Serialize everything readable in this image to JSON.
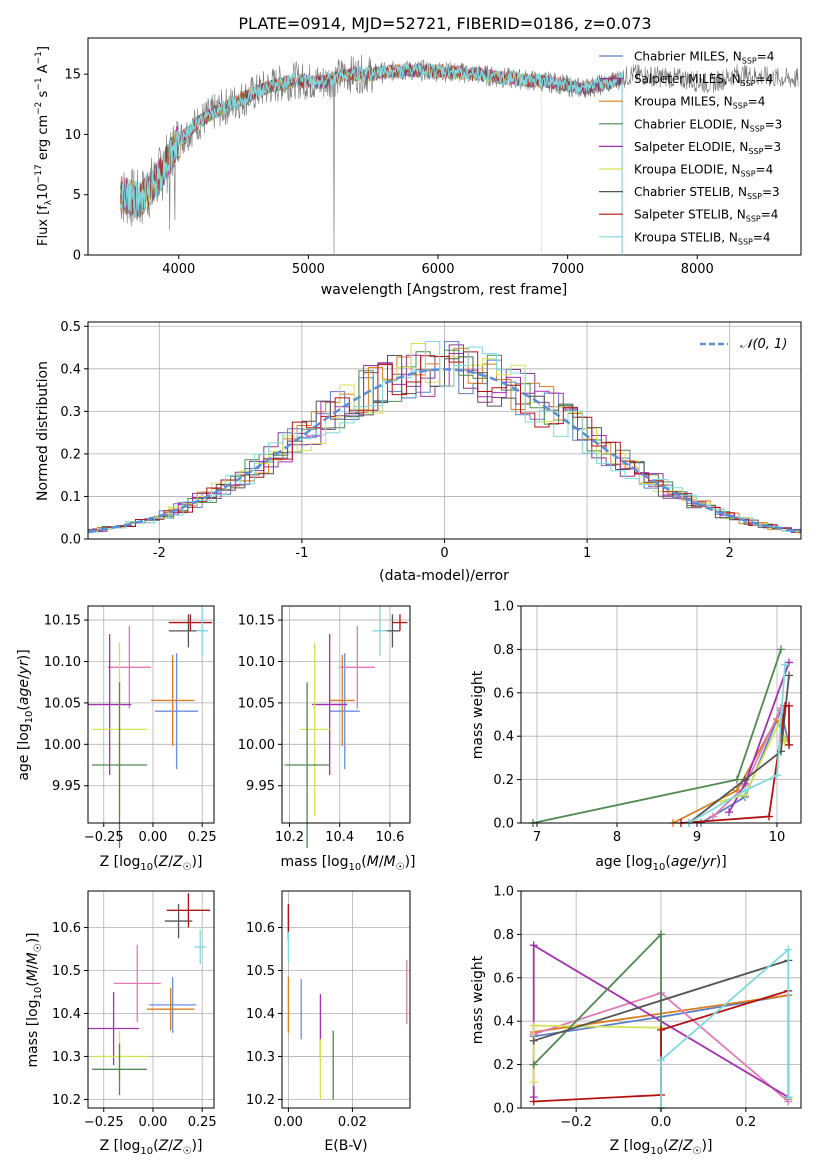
{
  "figure_title": "PLATE=0914, MJD=52721, FIBERID=0186, z=0.073",
  "colors": {
    "Chabrier MILES": "#5b7fc7",
    "Salpeter MILES": "#8b3b8f",
    "Kroupa MILES": "#d97d1f",
    "Chabrier ELODIE": "#4f8a4f",
    "Salpeter ELODIE": "#a531b0",
    "Kroupa ELODIE": "#d2e356",
    "Chabrier STELIB": "#555555",
    "Salpeter STELIB": "#b31212",
    "Kroupa STELIB": "#7fd9de",
    "Chabrier MILES alt": "#6a8fe0",
    "Salpeter MILES alt": "#e07ab8"
  },
  "chart_data": [
    {
      "id": "spectrum",
      "type": "line",
      "title": "PLATE=0914, MJD=52721, FIBERID=0186, z=0.073",
      "xlabel": "wavelength [Angstrom, rest frame]",
      "ylabel": "Flux [f_λ 10^-17 erg cm^-2 s^-1 A^-1]",
      "xlim": [
        3300,
        8800
      ],
      "ylim": [
        0,
        18
      ],
      "xticks": [
        4000,
        5000,
        6000,
        7000,
        8000
      ],
      "yticks": [
        0,
        5,
        10,
        15
      ],
      "grid": false,
      "legend_position": "upper-right",
      "legend": [
        {
          "label": "Chabrier MILES, N",
          "sub": "SSP",
          "suffix": "=4",
          "color": "#5b7fc7"
        },
        {
          "label": "Salpeter MILES, N",
          "sub": "SSP",
          "suffix": "=4",
          "color": "#8b3b8f"
        },
        {
          "label": "Kroupa MILES, N",
          "sub": "SSP",
          "suffix": "=4",
          "color": "#d97d1f"
        },
        {
          "label": "Chabrier ELODIE, N",
          "sub": "SSP",
          "suffix": "=3",
          "color": "#4f8a4f"
        },
        {
          "label": "Salpeter ELODIE, N",
          "sub": "SSP",
          "suffix": "=3",
          "color": "#a531b0"
        },
        {
          "label": "Kroupa ELODIE, N",
          "sub": "SSP",
          "suffix": "=4",
          "color": "#d2e356"
        },
        {
          "label": "Chabrier STELIB, N",
          "sub": "SSP",
          "suffix": "=3",
          "color": "#555555"
        },
        {
          "label": "Salpeter STELIB, N",
          "sub": "SSP",
          "suffix": "=4",
          "color": "#b31212"
        },
        {
          "label": "Kroupa STELIB, N",
          "sub": "SSP",
          "suffix": "=4",
          "color": "#7fd9de"
        }
      ],
      "data_envelope": {
        "x": [
          3550,
          3700,
          3850,
          4000,
          4150,
          4300,
          4500,
          4700,
          4900,
          5100,
          5300,
          5500,
          5700,
          5900,
          6100,
          6300,
          6500,
          6700,
          6900,
          7100,
          7300,
          7500,
          7700,
          7900,
          8100,
          8300,
          8500,
          8700
        ],
        "y": [
          5.0,
          4.5,
          6.5,
          9.5,
          11.0,
          12.0,
          13.0,
          14.0,
          14.5,
          14.3,
          15.0,
          15.0,
          15.3,
          15.3,
          15.2,
          15.0,
          14.7,
          14.5,
          14.3,
          13.8,
          14.2,
          15.0,
          14.8,
          14.6,
          14.2,
          15.0,
          14.8,
          14.6
        ]
      },
      "model_range": [
        3550,
        7420
      ]
    },
    {
      "id": "residuals",
      "type": "line",
      "xlabel": "(data-model)/error",
      "ylabel": "Normed distribution",
      "xlim": [
        -2.5,
        2.5
      ],
      "ylim": [
        0,
        0.51
      ],
      "xticks": [
        -2,
        -1,
        0,
        1,
        2
      ],
      "yticks": [
        0.0,
        0.1,
        0.2,
        0.3,
        0.4,
        0.5
      ],
      "grid": true,
      "legend_position": "upper-right",
      "legend": [
        {
          "label": "𝒩(0, 1)",
          "color": "#5b8fd6",
          "style": "dashed"
        }
      ],
      "bin_width": 0.1,
      "series": [
        {
          "color": "#5b7fc7",
          "offset": 0
        },
        {
          "color": "#8b3b8f",
          "offset": 1
        },
        {
          "color": "#d97d1f",
          "offset": 2
        },
        {
          "color": "#4f8a4f",
          "offset": 3
        },
        {
          "color": "#a531b0",
          "offset": 4
        },
        {
          "color": "#d2e356",
          "offset": 5
        },
        {
          "color": "#555555",
          "offset": 6
        },
        {
          "color": "#b31212",
          "offset": 7
        },
        {
          "color": "#7fd9de",
          "offset": 8
        }
      ]
    },
    {
      "id": "age-vs-Z",
      "type": "scatter",
      "xlabel": "Z [log₁₀(Z/Z☉)]",
      "ylabel": "age [log₁₀(age/yr)]",
      "xlim": [
        -0.33,
        0.31
      ],
      "ylim": [
        9.905,
        10.167
      ],
      "xticks": [
        -0.25,
        0.0,
        0.25
      ],
      "xticklabels": [
        "−0.25",
        "0.00",
        "0.25"
      ],
      "yticks": [
        9.95,
        10.0,
        10.05,
        10.1,
        10.15
      ],
      "yticklabels": [
        "9.95",
        "10.00",
        "10.05",
        "10.10",
        "10.15"
      ],
      "grid": true,
      "points": [
        {
          "x": 0.12,
          "y": 10.04,
          "xerr": 0.11,
          "yerr": 0.07,
          "color": "#6a8fe0"
        },
        {
          "x": 0.1,
          "y": 10.053,
          "xerr": 0.11,
          "yerr": 0.055,
          "color": "#d97d1f"
        },
        {
          "x": -0.12,
          "y": 10.093,
          "xerr": 0.11,
          "yerr": 0.05,
          "color": "#e07ab8"
        },
        {
          "x": -0.22,
          "y": 10.048,
          "xerr": 0.11,
          "yerr": 0.085,
          "color": "#a531b0"
        },
        {
          "x": -0.17,
          "y": 10.018,
          "xerr": 0.14,
          "yerr": 0.105,
          "color": "#d2e356"
        },
        {
          "x": -0.17,
          "y": 9.975,
          "xerr": 0.14,
          "yerr": 0.1,
          "color": "#4f8a4f"
        },
        {
          "x": 0.18,
          "y": 10.137,
          "xerr": 0.1,
          "yerr": 0.02,
          "color": "#555555"
        },
        {
          "x": 0.19,
          "y": 10.147,
          "xerr": 0.11,
          "yerr": 0.01,
          "color": "#b31212"
        },
        {
          "x": 0.25,
          "y": 10.137,
          "xerr": 0.03,
          "yerr": 0.03,
          "color": "#7fd9de"
        }
      ]
    },
    {
      "id": "age-vs-mass",
      "type": "scatter",
      "xlabel": "mass [log₁₀(M/M☉)]",
      "ylabel": "",
      "xlim": [
        10.17,
        10.68
      ],
      "ylim": [
        9.905,
        10.167
      ],
      "xticks": [
        10.2,
        10.4,
        10.6
      ],
      "yticks": [
        9.95,
        10.0,
        10.05,
        10.1,
        10.15
      ],
      "yticklabels": [
        "9.95",
        "10.00",
        "10.05",
        "10.10",
        "10.15"
      ],
      "grid": true,
      "points": [
        {
          "x": 10.42,
          "y": 10.04,
          "xerr": 0.06,
          "yerr": 0.07,
          "color": "#6a8fe0"
        },
        {
          "x": 10.41,
          "y": 10.053,
          "xerr": 0.05,
          "yerr": 0.055,
          "color": "#d97d1f"
        },
        {
          "x": 10.47,
          "y": 10.093,
          "xerr": 0.07,
          "yerr": 0.05,
          "color": "#e07ab8"
        },
        {
          "x": 10.36,
          "y": 10.048,
          "xerr": 0.07,
          "yerr": 0.085,
          "color": "#a531b0"
        },
        {
          "x": 10.3,
          "y": 10.018,
          "xerr": 0.06,
          "yerr": 0.105,
          "color": "#d2e356"
        },
        {
          "x": 10.27,
          "y": 9.975,
          "xerr": 0.09,
          "yerr": 0.1,
          "color": "#4f8a4f"
        },
        {
          "x": 10.61,
          "y": 10.137,
          "xerr": 0.03,
          "yerr": 0.02,
          "color": "#555555"
        },
        {
          "x": 10.64,
          "y": 10.147,
          "xerr": 0.03,
          "yerr": 0.01,
          "color": "#b31212"
        },
        {
          "x": 10.56,
          "y": 10.137,
          "xerr": 0.03,
          "yerr": 0.03,
          "color": "#7fd9de"
        }
      ]
    },
    {
      "id": "mass-weight-vs-age",
      "type": "line",
      "xlabel": "age [log₁₀(age/yr)]",
      "ylabel": "mass weight",
      "xlim": [
        6.8,
        10.3
      ],
      "ylim": [
        0,
        1.0
      ],
      "xticks": [
        7,
        8,
        9,
        10
      ],
      "yticks": [
        0.0,
        0.2,
        0.4,
        0.6,
        0.8,
        1.0
      ],
      "grid": true,
      "series": [
        {
          "color": "#5b7fc7",
          "x": [
            9.05,
            9.6,
            10.05,
            10.15
          ],
          "y": [
            0.0,
            0.12,
            0.52,
            0.36
          ]
        },
        {
          "color": "#d97d1f",
          "x": [
            8.7,
            9.5,
            10.0,
            10.1
          ],
          "y": [
            0.0,
            0.15,
            0.48,
            0.38
          ]
        },
        {
          "color": "#e07ab8",
          "x": [
            9.2,
            9.6,
            10.05
          ],
          "y": [
            0.03,
            0.17,
            0.53
          ]
        },
        {
          "color": "#a531b0",
          "x": [
            9.4,
            9.6,
            10.15
          ],
          "y": [
            0.05,
            0.18,
            0.74
          ]
        },
        {
          "color": "#d2e356",
          "x": [
            9.3,
            9.6,
            10.05,
            10.1
          ],
          "y": [
            0.1,
            0.13,
            0.48,
            0.37
          ]
        },
        {
          "color": "#4f8a4f",
          "x": [
            6.95,
            9.5,
            10.05
          ],
          "y": [
            0.0,
            0.2,
            0.8
          ]
        },
        {
          "color": "#555555",
          "x": [
            8.9,
            9.6,
            10.05,
            10.15
          ],
          "y": [
            0.0,
            0.2,
            0.33,
            0.68
          ]
        },
        {
          "color": "#b31212",
          "x": [
            8.8,
            9.9,
            10.1,
            10.15,
            10.15
          ],
          "y": [
            0.0,
            0.03,
            0.54,
            0.54,
            0.36
          ]
        },
        {
          "color": "#7fd9de",
          "x": [
            8.9,
            9.6,
            10.0,
            10.1
          ],
          "y": [
            0.0,
            0.15,
            0.22,
            0.73
          ]
        }
      ]
    },
    {
      "id": "mass-vs-Z",
      "type": "scatter",
      "xlabel": "Z [log₁₀(Z/Z☉)]",
      "ylabel": "mass [log₁₀(M/M☉)]",
      "xlim": [
        -0.33,
        0.31
      ],
      "ylim": [
        10.18,
        10.685
      ],
      "xticks": [
        -0.25,
        0.0,
        0.25
      ],
      "xticklabels": [
        "−0.25",
        "0.00",
        "0.25"
      ],
      "yticks": [
        10.2,
        10.3,
        10.4,
        10.5,
        10.6
      ],
      "grid": true,
      "points": [
        {
          "x": 0.1,
          "y": 10.42,
          "xerr": 0.12,
          "yerr": 0.065,
          "color": "#6a8fe0"
        },
        {
          "x": 0.09,
          "y": 10.41,
          "xerr": 0.12,
          "yerr": 0.05,
          "color": "#d97d1f"
        },
        {
          "x": -0.08,
          "y": 10.47,
          "xerr": 0.12,
          "yerr": 0.09,
          "color": "#e07ab8"
        },
        {
          "x": -0.2,
          "y": 10.365,
          "xerr": 0.13,
          "yerr": 0.085,
          "color": "#a531b0"
        },
        {
          "x": -0.17,
          "y": 10.3,
          "xerr": 0.14,
          "yerr": 0.06,
          "color": "#d2e356"
        },
        {
          "x": -0.17,
          "y": 10.27,
          "xerr": 0.14,
          "yerr": 0.06,
          "color": "#4f8a4f"
        },
        {
          "x": 0.13,
          "y": 10.615,
          "xerr": 0.07,
          "yerr": 0.04,
          "color": "#555555"
        },
        {
          "x": 0.18,
          "y": 10.64,
          "xerr": 0.11,
          "yerr": 0.04,
          "color": "#b31212"
        },
        {
          "x": 0.24,
          "y": 10.555,
          "xerr": 0.03,
          "yerr": 0.04,
          "color": "#7fd9de"
        }
      ]
    },
    {
      "id": "mass-vs-EBV",
      "type": "scatter",
      "xlabel": "E(B-V)",
      "ylabel": "",
      "xlim": [
        -0.002,
        0.038
      ],
      "ylim": [
        10.18,
        10.685
      ],
      "xticks": [
        0.0,
        0.02
      ],
      "xticklabels": [
        "0.00",
        "0.02"
      ],
      "yticks": [
        10.2,
        10.3,
        10.4,
        10.5,
        10.6
      ],
      "grid": true,
      "points": [
        {
          "x": 0.004,
          "y": 10.41,
          "yerr": 0.07,
          "color": "#6a8fe0"
        },
        {
          "x": 0.0,
          "y": 10.42,
          "yerr": 0.065,
          "color": "#d97d1f"
        },
        {
          "x": 0.037,
          "y": 10.45,
          "yerr": 0.075,
          "color": "#e07ab8"
        },
        {
          "x": 0.01,
          "y": 10.37,
          "yerr": 0.075,
          "color": "#a531b0"
        },
        {
          "x": 0.01,
          "y": 10.27,
          "yerr": 0.07,
          "color": "#d2e356"
        },
        {
          "x": 0.014,
          "y": 10.28,
          "yerr": 0.08,
          "color": "#4f8a4f"
        },
        {
          "x": 0.0,
          "y": 10.61,
          "yerr": 0.04,
          "color": "#555555"
        },
        {
          "x": 0.0,
          "y": 10.615,
          "yerr": 0.04,
          "color": "#b31212"
        },
        {
          "x": 0.0,
          "y": 10.555,
          "yerr": 0.035,
          "color": "#7fd9de"
        }
      ]
    },
    {
      "id": "mass-weight-vs-Z",
      "type": "line",
      "xlabel": "Z [log₁₀(Z/Z☉)]",
      "ylabel": "mass weight",
      "xlim": [
        -0.33,
        0.33
      ],
      "ylim": [
        0,
        1.0
      ],
      "xticks": [
        -0.2,
        0.0,
        0.2
      ],
      "xticklabels": [
        "−0.2",
        "0.0",
        "0.2"
      ],
      "yticks": [
        0.0,
        0.2,
        0.4,
        0.6,
        0.8,
        1.0
      ],
      "grid": true,
      "series": [
        {
          "color": "#5b7fc7",
          "x": [
            -0.3,
            0.0,
            0.3,
            0.3
          ],
          "y": [
            0.33,
            0.42,
            0.52,
            0.05
          ]
        },
        {
          "color": "#d97d1f",
          "x": [
            -0.3,
            0.3,
            0.3
          ],
          "y": [
            0.35,
            0.52,
            0.04
          ]
        },
        {
          "color": "#e07ab8",
          "x": [
            -0.3,
            0.0,
            0.3
          ],
          "y": [
            0.34,
            0.53,
            0.03
          ]
        },
        {
          "color": "#a531b0",
          "x": [
            -0.3,
            -0.3,
            0.3
          ],
          "y": [
            0.05,
            0.75,
            0.05
          ]
        },
        {
          "color": "#d2e356",
          "x": [
            -0.3,
            -0.3,
            0.0
          ],
          "y": [
            0.12,
            0.38,
            0.37
          ]
        },
        {
          "color": "#4f8a4f",
          "x": [
            -0.3,
            0.0,
            0.0
          ],
          "y": [
            0.2,
            0.8,
            0.0
          ]
        },
        {
          "color": "#555555",
          "x": [
            -0.3,
            0.3
          ],
          "y": [
            0.31,
            0.68
          ]
        },
        {
          "color": "#b31212",
          "x": [
            -0.3,
            0.0,
            0.0,
            0.3
          ],
          "y": [
            0.03,
            0.06,
            0.36,
            0.54
          ]
        },
        {
          "color": "#7fd9de",
          "x": [
            0.0,
            0.0,
            0.3,
            0.3
          ],
          "y": [
            0.0,
            0.22,
            0.73,
            0.05
          ]
        }
      ]
    }
  ]
}
